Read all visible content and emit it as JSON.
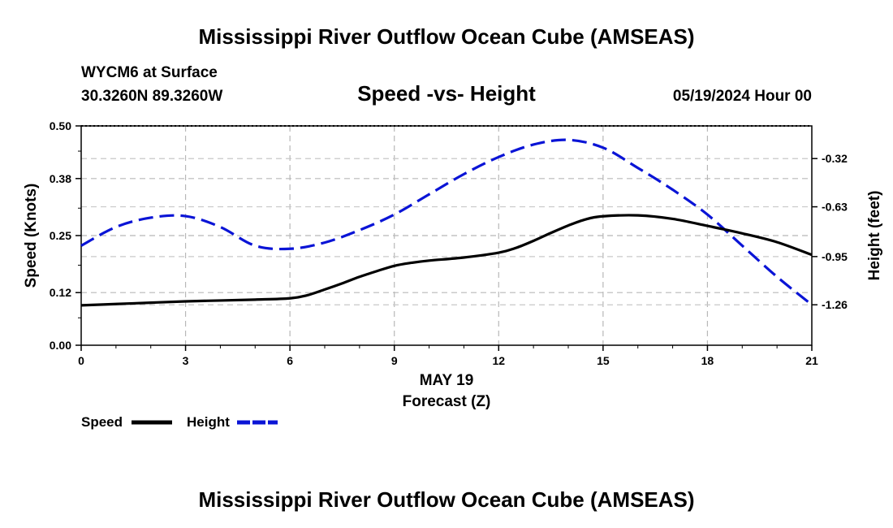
{
  "chart_data": {
    "type": "line",
    "title": "Mississippi River Outflow Ocean Cube (AMSEAS)",
    "footer_title": "Mississippi River Outflow Ocean Cube (AMSEAS)",
    "station": "WYCM6 at Surface",
    "location": "30.3260N  89.3260W",
    "subtitle": "Speed -vs- Height",
    "datetime": "05/19/2024 Hour 00",
    "xlabel_date": "MAY 19",
    "xlabel": "Forecast (Z)",
    "ylabel": "Speed (Knots)",
    "y2label": "Height (feet)",
    "xlim": [
      0,
      21
    ],
    "ylim": [
      0,
      0.5
    ],
    "y2lim": [
      -1.52,
      -0.11
    ],
    "x_ticks": [
      "0",
      "3",
      "6",
      "9",
      "12",
      "15",
      "18",
      "21"
    ],
    "y_ticks": [
      "0.00",
      "0.12",
      "0.25",
      "0.38",
      "0.50"
    ],
    "y2_ticks": [
      "-0.32",
      "-0.63",
      "-0.95",
      "-1.26"
    ],
    "y2_tick_values": [
      -0.32,
      -0.63,
      -0.95,
      -1.26
    ],
    "grid": true,
    "legend_position": "bottom-left",
    "series": [
      {
        "name": "Speed",
        "axis": "left",
        "color": "#000000",
        "style": "solid",
        "x": [
          0,
          1,
          2,
          3,
          4,
          5,
          6,
          6.5,
          7,
          7.5,
          8,
          8.5,
          9,
          9.5,
          10,
          11,
          12,
          12.5,
          13,
          13.5,
          14,
          14.5,
          15,
          16,
          17,
          18,
          19,
          20,
          21
        ],
        "values": [
          0.091,
          0.094,
          0.097,
          0.1,
          0.102,
          0.104,
          0.107,
          0.114,
          0.127,
          0.141,
          0.156,
          0.169,
          0.181,
          0.188,
          0.193,
          0.2,
          0.211,
          0.222,
          0.238,
          0.256,
          0.273,
          0.287,
          0.294,
          0.296,
          0.288,
          0.272,
          0.255,
          0.235,
          0.206
        ]
      },
      {
        "name": "Height",
        "axis": "right",
        "color": "#0a14d6",
        "style": "dashed",
        "x": [
          0,
          1,
          2,
          3,
          4,
          5,
          6,
          7,
          8,
          9,
          10,
          11,
          12,
          13,
          14,
          15,
          16,
          17,
          18,
          19,
          20,
          21
        ],
        "values": [
          -0.88,
          -0.76,
          -0.7,
          -0.69,
          -0.76,
          -0.88,
          -0.9,
          -0.86,
          -0.78,
          -0.68,
          -0.55,
          -0.42,
          -0.31,
          -0.23,
          -0.2,
          -0.25,
          -0.38,
          -0.52,
          -0.68,
          -0.88,
          -1.08,
          -1.26
        ]
      }
    ]
  }
}
